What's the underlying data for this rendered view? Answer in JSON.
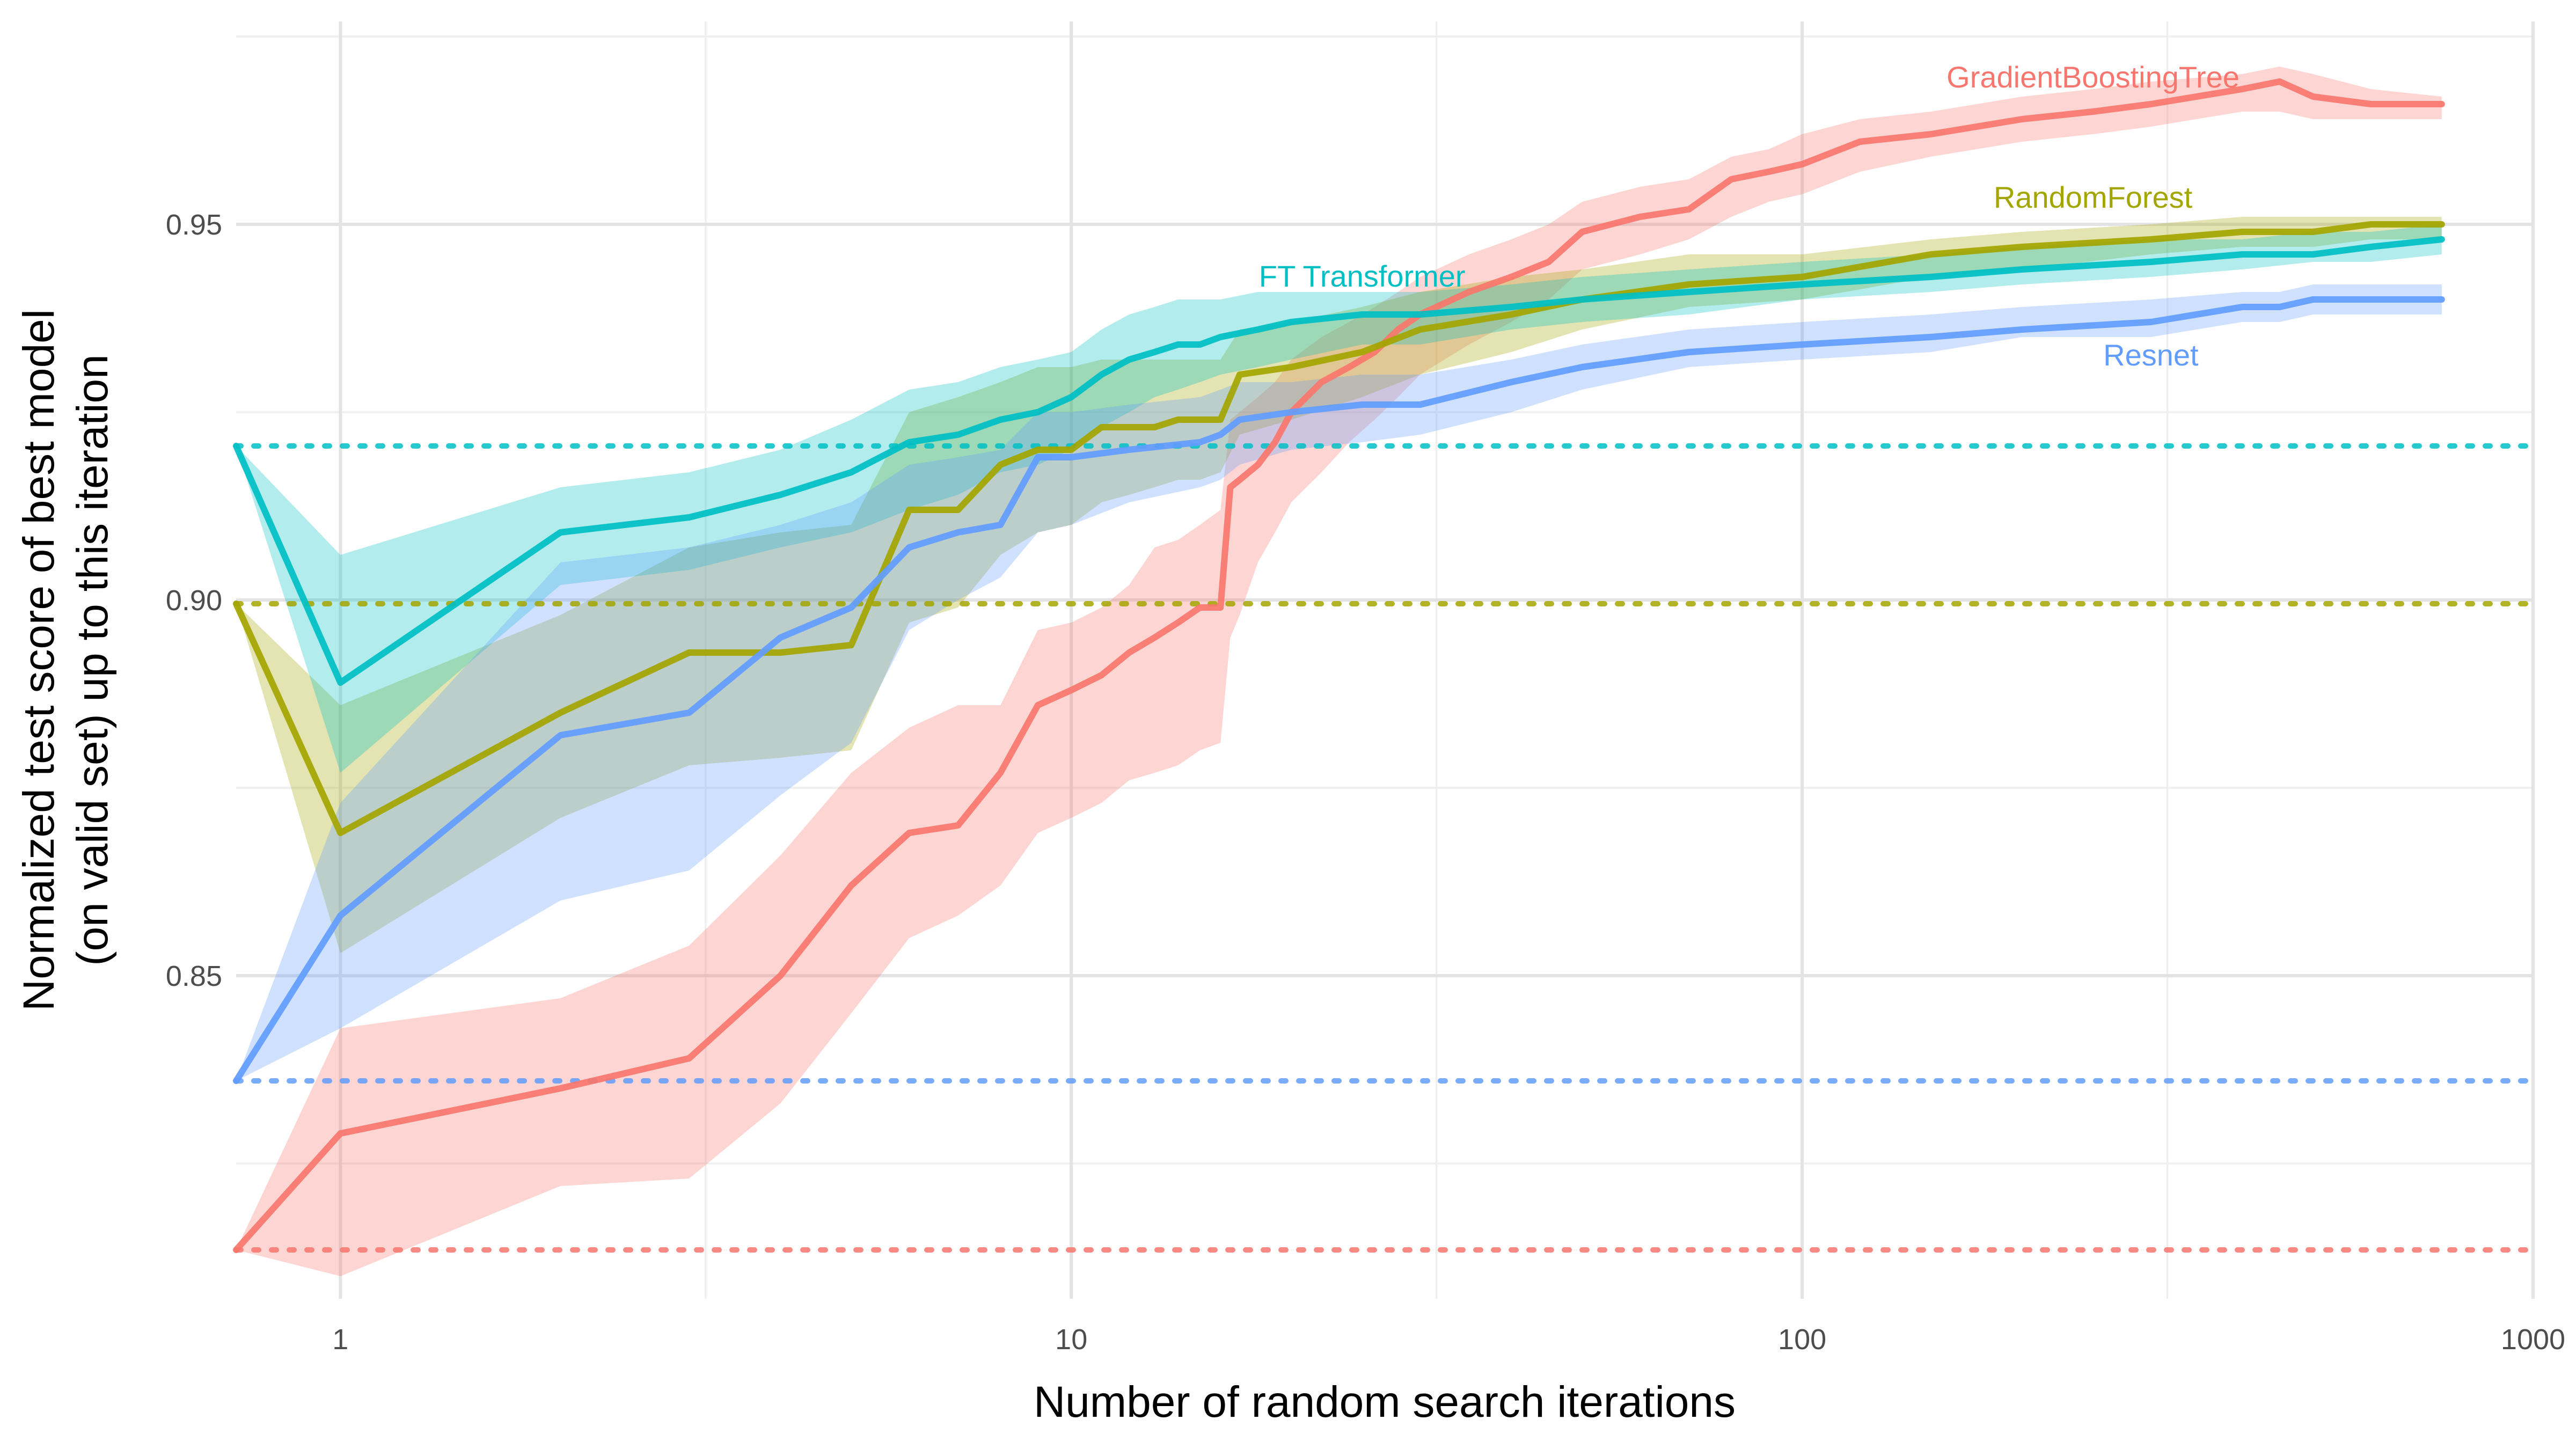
{
  "chart_data": {
    "type": "line",
    "title": "",
    "xlabel": "Number of random search iterations",
    "ylabel_lines": [
      "Normalized test score of best model",
      "(on valid set) up to this iteration"
    ],
    "x_scale": "log",
    "xlim": [
      0.72,
      1000
    ],
    "ylim": [
      0.807,
      0.977
    ],
    "x_ticks": [
      1,
      10,
      100,
      1000
    ],
    "x_tick_labels": [
      "1",
      "10",
      "100",
      "1000"
    ],
    "x_minor_ticks": [
      3.16,
      31.6,
      316
    ],
    "y_ticks": [
      0.85,
      0.9,
      0.95
    ],
    "y_tick_labels": [
      "0.85",
      "0.90",
      "0.95"
    ],
    "y_minor_ticks": [
      0.825,
      0.875,
      0.925,
      0.975
    ],
    "grid": true,
    "legend": "none (direct labels)",
    "series": [
      {
        "name": "GradientBoostingTree",
        "color": "#F8766D",
        "band_color": "#F8766D",
        "baseline": 0.8135,
        "label_at": [
          250,
          0.9695
        ],
        "x": [
          0.72,
          1,
          2,
          3,
          4,
          5,
          6,
          7,
          8,
          9,
          10,
          11,
          12,
          13,
          14,
          15,
          16,
          16.5,
          17,
          18,
          19,
          20,
          22,
          24,
          26,
          28,
          30,
          35,
          40,
          45,
          50,
          60,
          70,
          80,
          90,
          100,
          120,
          150,
          200,
          250,
          300,
          400,
          450,
          500,
          600,
          750
        ],
        "y": [
          0.8135,
          0.829,
          0.835,
          0.839,
          0.85,
          0.862,
          0.869,
          0.87,
          0.877,
          0.886,
          0.888,
          0.89,
          0.893,
          0.895,
          0.897,
          0.899,
          0.899,
          0.915,
          0.916,
          0.918,
          0.921,
          0.925,
          0.929,
          0.931,
          0.933,
          0.936,
          0.938,
          0.941,
          0.943,
          0.945,
          0.949,
          0.951,
          0.952,
          0.956,
          0.957,
          0.958,
          0.961,
          0.962,
          0.964,
          0.965,
          0.966,
          0.968,
          0.969,
          0.967,
          0.966,
          0.966
        ],
        "lower": [
          0.8135,
          0.81,
          0.822,
          0.823,
          0.833,
          0.845,
          0.855,
          0.858,
          0.862,
          0.869,
          0.871,
          0.873,
          0.876,
          0.877,
          0.878,
          0.88,
          0.881,
          0.895,
          0.898,
          0.905,
          0.909,
          0.913,
          0.917,
          0.921,
          0.924,
          0.927,
          0.93,
          0.934,
          0.937,
          0.94,
          0.944,
          0.946,
          0.948,
          0.951,
          0.953,
          0.954,
          0.957,
          0.959,
          0.961,
          0.962,
          0.963,
          0.965,
          0.965,
          0.964,
          0.964,
          0.964
        ],
        "upper": [
          0.8135,
          0.843,
          0.847,
          0.854,
          0.866,
          0.877,
          0.883,
          0.886,
          0.886,
          0.896,
          0.897,
          0.899,
          0.902,
          0.907,
          0.908,
          0.91,
          0.912,
          0.924,
          0.925,
          0.927,
          0.929,
          0.932,
          0.935,
          0.937,
          0.939,
          0.941,
          0.943,
          0.946,
          0.948,
          0.95,
          0.953,
          0.955,
          0.956,
          0.959,
          0.96,
          0.962,
          0.964,
          0.965,
          0.967,
          0.968,
          0.969,
          0.97,
          0.971,
          0.97,
          0.968,
          0.967
        ]
      },
      {
        "name": "RandomForest",
        "color": "#A3A500",
        "band_color": "#A3A500",
        "baseline": 0.8995,
        "label_at": [
          250,
          0.9535
        ],
        "x": [
          0.72,
          1,
          2,
          3,
          4,
          5,
          6,
          7,
          8,
          9,
          10,
          11,
          12,
          13,
          14,
          15,
          16,
          17,
          20,
          25,
          30,
          40,
          50,
          70,
          100,
          150,
          200,
          300,
          400,
          500,
          600,
          750
        ],
        "y": [
          0.8995,
          0.869,
          0.885,
          0.893,
          0.893,
          0.894,
          0.912,
          0.912,
          0.918,
          0.92,
          0.92,
          0.923,
          0.923,
          0.923,
          0.924,
          0.924,
          0.924,
          0.93,
          0.931,
          0.933,
          0.936,
          0.938,
          0.94,
          0.942,
          0.943,
          0.946,
          0.947,
          0.948,
          0.949,
          0.949,
          0.95,
          0.95
        ],
        "lower": [
          0.8995,
          0.853,
          0.871,
          0.878,
          0.879,
          0.88,
          0.897,
          0.899,
          0.906,
          0.909,
          0.91,
          0.913,
          0.914,
          0.915,
          0.916,
          0.916,
          0.917,
          0.922,
          0.924,
          0.927,
          0.93,
          0.933,
          0.936,
          0.939,
          0.94,
          0.943,
          0.944,
          0.946,
          0.947,
          0.947,
          0.948,
          0.948
        ],
        "upper": [
          0.8995,
          0.886,
          0.898,
          0.907,
          0.909,
          0.91,
          0.925,
          0.927,
          0.929,
          0.931,
          0.931,
          0.932,
          0.932,
          0.932,
          0.932,
          0.932,
          0.932,
          0.936,
          0.937,
          0.939,
          0.941,
          0.943,
          0.944,
          0.946,
          0.946,
          0.948,
          0.949,
          0.95,
          0.951,
          0.951,
          0.951,
          0.951
        ]
      },
      {
        "name": "FT Transformer",
        "color": "#00BFC4",
        "band_color": "#00BFC4",
        "baseline": 0.9205,
        "label_at": [
          25,
          0.943
        ],
        "x": [
          0.72,
          1,
          2,
          3,
          4,
          5,
          6,
          7,
          8,
          9,
          10,
          11,
          12,
          13,
          14,
          15,
          16,
          18,
          20,
          25,
          30,
          40,
          50,
          70,
          100,
          150,
          200,
          300,
          400,
          500,
          600,
          750
        ],
        "y": [
          0.9205,
          0.889,
          0.909,
          0.911,
          0.914,
          0.917,
          0.921,
          0.922,
          0.924,
          0.925,
          0.927,
          0.93,
          0.932,
          0.933,
          0.934,
          0.934,
          0.935,
          0.936,
          0.937,
          0.938,
          0.938,
          0.939,
          0.94,
          0.941,
          0.942,
          0.943,
          0.944,
          0.945,
          0.946,
          0.946,
          0.947,
          0.948
        ],
        "lower": [
          0.9205,
          0.877,
          0.902,
          0.904,
          0.907,
          0.909,
          0.912,
          0.914,
          0.917,
          0.918,
          0.92,
          0.923,
          0.925,
          0.927,
          0.928,
          0.929,
          0.93,
          0.931,
          0.932,
          0.934,
          0.934,
          0.936,
          0.937,
          0.938,
          0.94,
          0.941,
          0.942,
          0.943,
          0.944,
          0.945,
          0.945,
          0.946
        ],
        "upper": [
          0.9205,
          0.906,
          0.915,
          0.917,
          0.92,
          0.924,
          0.928,
          0.929,
          0.931,
          0.932,
          0.933,
          0.936,
          0.938,
          0.939,
          0.94,
          0.94,
          0.94,
          0.941,
          0.941,
          0.941,
          0.941,
          0.942,
          0.943,
          0.944,
          0.945,
          0.946,
          0.947,
          0.948,
          0.948,
          0.949,
          0.949,
          0.95
        ]
      },
      {
        "name": "Resnet",
        "color": "#619CFF",
        "band_color": "#619CFF",
        "baseline": 0.836,
        "label_at": [
          300,
          0.9325
        ],
        "x": [
          0.72,
          1,
          2,
          3,
          4,
          5,
          6,
          7,
          8,
          9,
          10,
          12,
          15,
          16,
          17,
          20,
          25,
          30,
          40,
          50,
          70,
          100,
          150,
          200,
          300,
          400,
          450,
          500,
          600,
          750
        ],
        "y": [
          0.836,
          0.858,
          0.882,
          0.885,
          0.895,
          0.899,
          0.907,
          0.909,
          0.91,
          0.919,
          0.919,
          0.92,
          0.921,
          0.922,
          0.924,
          0.925,
          0.926,
          0.926,
          0.929,
          0.931,
          0.933,
          0.934,
          0.935,
          0.936,
          0.937,
          0.939,
          0.939,
          0.94,
          0.94,
          0.94
        ],
        "lower": [
          0.836,
          0.843,
          0.86,
          0.864,
          0.874,
          0.881,
          0.896,
          0.9,
          0.903,
          0.909,
          0.91,
          0.913,
          0.915,
          0.916,
          0.918,
          0.92,
          0.921,
          0.922,
          0.925,
          0.928,
          0.931,
          0.932,
          0.933,
          0.935,
          0.935,
          0.937,
          0.937,
          0.938,
          0.938,
          0.938
        ],
        "upper": [
          0.836,
          0.873,
          0.905,
          0.907,
          0.91,
          0.913,
          0.918,
          0.919,
          0.92,
          0.925,
          0.925,
          0.926,
          0.927,
          0.928,
          0.929,
          0.929,
          0.93,
          0.93,
          0.932,
          0.934,
          0.936,
          0.937,
          0.938,
          0.939,
          0.94,
          0.941,
          0.941,
          0.942,
          0.942,
          0.942
        ]
      }
    ]
  }
}
